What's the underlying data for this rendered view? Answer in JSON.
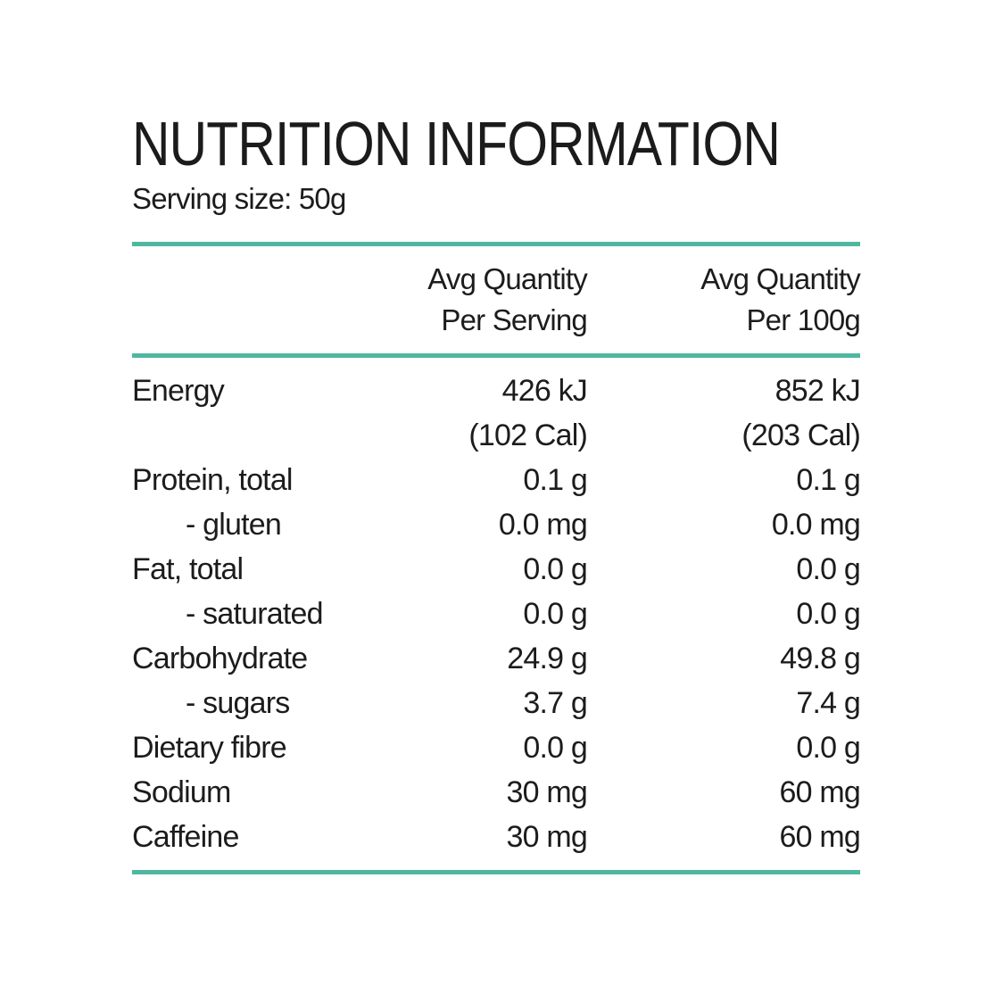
{
  "page": {
    "background_color": "#ffffff",
    "text_color": "#1b1b1b",
    "accent_color": "#4FB7A0"
  },
  "header": {
    "title": "NUTRITION INFORMATION",
    "serving_size": "Serving size: 50g"
  },
  "table": {
    "column_headers": {
      "per_serving": "Avg Quantity\nPer Serving",
      "per_100g": "Avg Quantity\nPer 100g"
    },
    "rows": [
      {
        "label": "Energy",
        "indent": false,
        "per_serving": "426 kJ",
        "per_100g": "852 kJ"
      },
      {
        "label": "",
        "indent": false,
        "per_serving": "(102 Cal)",
        "per_100g": "(203 Cal)"
      },
      {
        "label": "Protein, total",
        "indent": false,
        "per_serving": "0.1 g",
        "per_100g": "0.1 g"
      },
      {
        "label": "- gluten",
        "indent": true,
        "per_serving": "0.0 mg",
        "per_100g": "0.0 mg"
      },
      {
        "label": "Fat, total",
        "indent": false,
        "per_serving": "0.0 g",
        "per_100g": "0.0 g"
      },
      {
        "label": "- saturated",
        "indent": true,
        "per_serving": "0.0 g",
        "per_100g": "0.0 g"
      },
      {
        "label": "Carbohydrate",
        "indent": false,
        "per_serving": "24.9 g",
        "per_100g": "49.8 g"
      },
      {
        "label": "- sugars",
        "indent": true,
        "per_serving": "3.7 g",
        "per_100g": "7.4 g"
      },
      {
        "label": "Dietary fibre",
        "indent": false,
        "per_serving": "0.0 g",
        "per_100g": "0.0 g"
      },
      {
        "label": "Sodium",
        "indent": false,
        "per_serving": "30 mg",
        "per_100g": "60 mg"
      },
      {
        "label": "Caffeine",
        "indent": false,
        "per_serving": "30 mg",
        "per_100g": "60 mg"
      }
    ]
  }
}
